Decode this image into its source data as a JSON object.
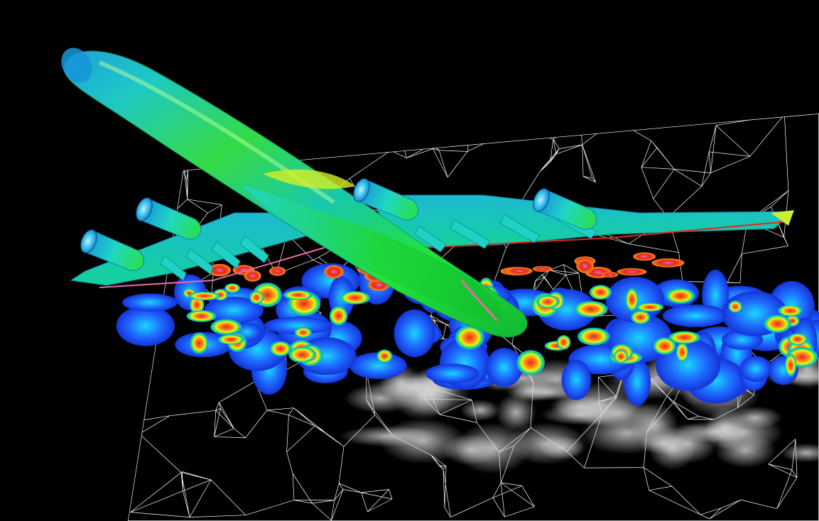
{
  "scene": {
    "kind": "cfd-visualization",
    "subject": "four-engine-airliner",
    "background_color": "#000000",
    "mesh_color": "#ffffff",
    "dense_mesh_color": "#d0d0d0",
    "vorticity_palette": [
      "#1433d9",
      "#1f8bff",
      "#19d7ff",
      "#1eea5a",
      "#f3ee20",
      "#ff8a12",
      "#e3271d",
      "#e86aa8"
    ],
    "aircraft_surface_colors": [
      "#11d11a",
      "#49e84c",
      "#1ec8c7",
      "#188fd3",
      "#d7ef25"
    ],
    "engine_count": 4,
    "icons": [
      "aircraft-icon",
      "engine-icon",
      "mesh-icon"
    ]
  }
}
